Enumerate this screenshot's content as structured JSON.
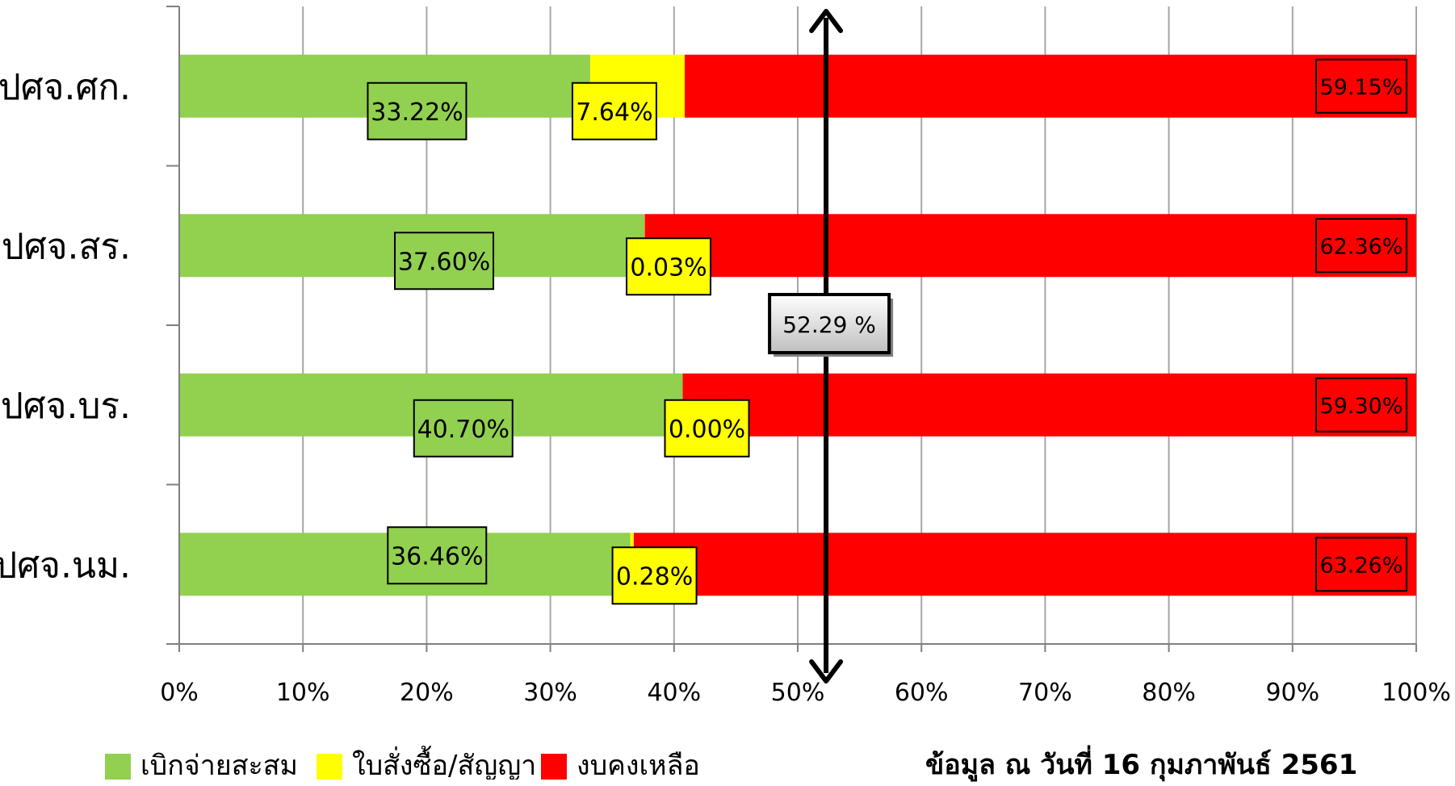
{
  "chart_data": {
    "type": "bar",
    "orientation": "horizontal",
    "stacked": true,
    "categories": [
      "ปศจ.ศก.",
      "ปศจ.สร.",
      "ปศจ.บร.",
      "ปศจ.นม."
    ],
    "series": [
      {
        "name": "เบิกจ่ายสะสม",
        "color": "#92D050",
        "values": [
          33.22,
          37.6,
          40.7,
          36.46
        ],
        "labels": [
          "33.22%",
          "37.60%",
          "40.70%",
          "36.46%"
        ]
      },
      {
        "name": "ใบสั่งซื้อ/สัญญา",
        "color": "#FFFF00",
        "values": [
          7.64,
          0.03,
          0.0,
          0.28
        ],
        "labels": [
          "7.64%",
          "0.03%",
          "0.00%",
          "0.28%"
        ]
      },
      {
        "name": "งบคงเหลือ",
        "color": "#FF0000",
        "values": [
          59.15,
          62.36,
          59.3,
          63.26
        ],
        "labels": [
          "59.15%",
          "62.36%",
          "59.30%",
          "63.26%"
        ]
      }
    ],
    "xlim": [
      0,
      100
    ],
    "xticks": [
      "0%",
      "10%",
      "20%",
      "30%",
      "40%",
      "50%",
      "60%",
      "70%",
      "80%",
      "90%",
      "100%"
    ],
    "grid": true,
    "legend_position": "bottom-left",
    "reference_line": {
      "value": 52.29,
      "label": "52.29 %"
    }
  },
  "footer": {
    "date_note": "ข้อมูล ณ วันที่ 16 กุมภาพันธ์ 2561"
  }
}
